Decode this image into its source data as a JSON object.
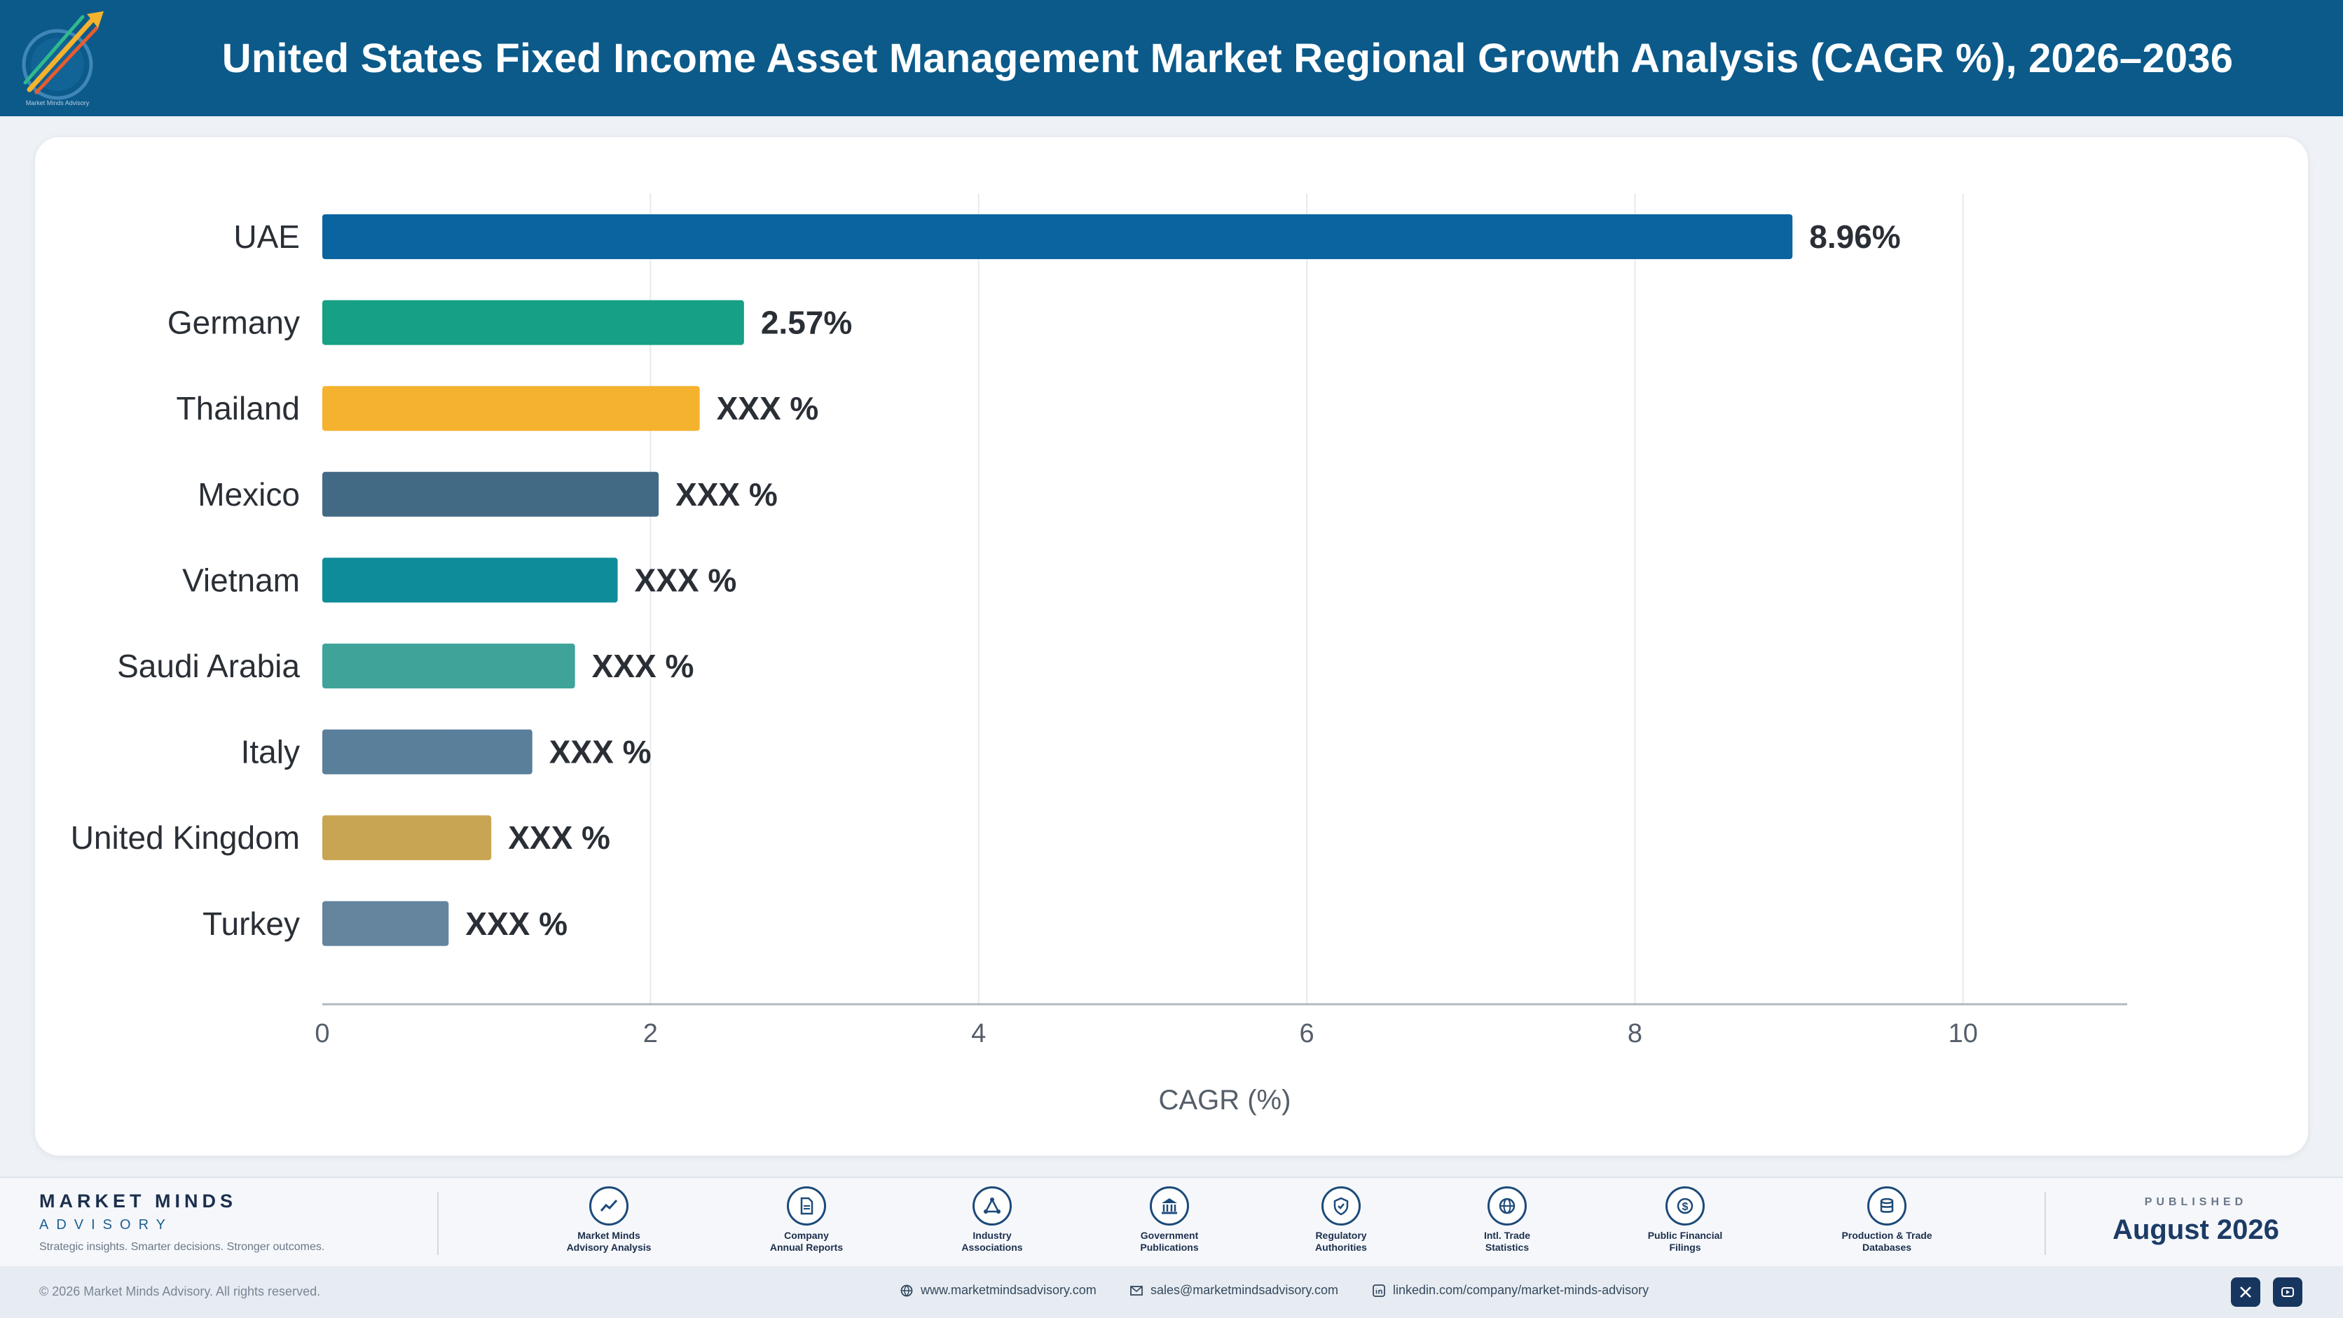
{
  "header": {
    "title": "United States Fixed Income Asset Management Market Regional Growth Analysis (CAGR %), 2026–2036",
    "logo_caption": "Market Minds Advisory"
  },
  "chart_data": {
    "type": "bar",
    "orientation": "horizontal",
    "categories": [
      "UAE",
      "Germany",
      "Thailand",
      "Mexico",
      "Vietnam",
      "Saudi Arabia",
      "Italy",
      "United Kingdom",
      "Turkey"
    ],
    "values": [
      8.96,
      2.57,
      2.3,
      2.05,
      1.8,
      1.54,
      1.28,
      1.03,
      0.77
    ],
    "data_labels": [
      "8.96%",
      "2.57%",
      "XXX %",
      "XXX %",
      "XXX %",
      "XXX %",
      "XXX %",
      "XXX %",
      "XXX %"
    ],
    "colors": [
      "#0a64a0",
      "#16a085",
      "#f5b22e",
      "#436a85",
      "#0f8c9a",
      "#3fa39a",
      "#5a7f9a",
      "#c8a553",
      "#65859e"
    ],
    "xlabel": "CAGR (%)",
    "xlim": [
      0,
      11
    ],
    "xticks": [
      0,
      2,
      4,
      6,
      8,
      10
    ],
    "grid": true
  },
  "footer": {
    "brand_name": "MARKET MINDS",
    "brand_sub": "ADVISORY",
    "tagline": "Strategic insights. Smarter decisions. Stronger outcomes.",
    "sources": [
      {
        "line1": "Market Minds",
        "line2": "Advisory Analysis",
        "icon": "chart-line-icon"
      },
      {
        "line1": "Company",
        "line2": "Annual Reports",
        "icon": "document-icon"
      },
      {
        "line1": "Industry",
        "line2": "Associations",
        "icon": "network-icon"
      },
      {
        "line1": "Government",
        "line2": "Publications",
        "icon": "government-building-icon"
      },
      {
        "line1": "Regulatory",
        "line2": "Authorities",
        "icon": "shield-check-icon"
      },
      {
        "line1": "Intl. Trade",
        "line2": "Statistics",
        "icon": "globe-icon"
      },
      {
        "line1": "Public Financial",
        "line2": "Filings",
        "icon": "dollar-coin-icon"
      },
      {
        "line1": "Production & Trade",
        "line2": "Databases",
        "icon": "database-icon"
      }
    ],
    "published_label": "PUBLISHED",
    "published_date": "August 2026",
    "copyright": "© 2026 Market Minds Advisory. All rights reserved.",
    "website": "www.marketmindsadvisory.com",
    "email": "sales@marketmindsadvisory.com",
    "linkedin": "linkedin.com/company/market-minds-advisory"
  }
}
